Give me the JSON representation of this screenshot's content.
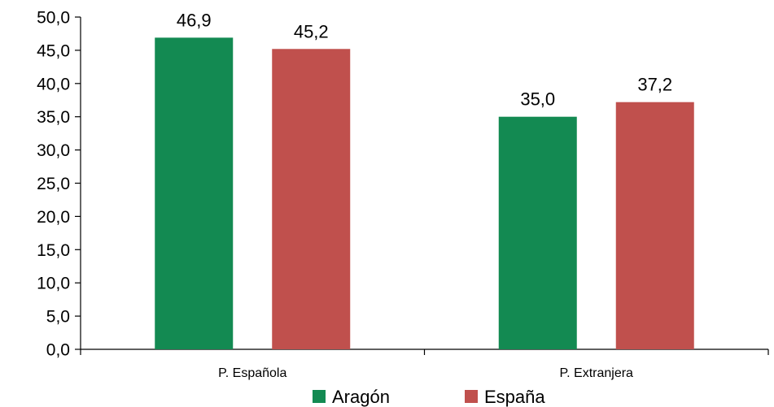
{
  "chart_data": {
    "type": "bar",
    "categories": [
      "P. Española",
      "P. Extranjera"
    ],
    "series": [
      {
        "name": "Aragón",
        "values": [
          46.9,
          35.0
        ],
        "value_labels": [
          "46,9",
          "35,0"
        ],
        "color": "#138a52"
      },
      {
        "name": "España",
        "values": [
          45.2,
          37.2
        ],
        "value_labels": [
          "45,2",
          "37,2"
        ],
        "color": "#c0504d"
      }
    ],
    "ylim": [
      0,
      50
    ],
    "ytick_values": [
      0,
      5,
      10,
      15,
      20,
      25,
      30,
      35,
      40,
      45,
      50
    ],
    "ytick_labels": [
      "0,0",
      "5,0",
      "10,0",
      "15,0",
      "20,0",
      "25,0",
      "30,0",
      "35,0",
      "40,0",
      "45,0",
      "50,0"
    ],
    "title": "",
    "xlabel": "",
    "ylabel": "",
    "grid": false,
    "legend_position": "bottom"
  }
}
